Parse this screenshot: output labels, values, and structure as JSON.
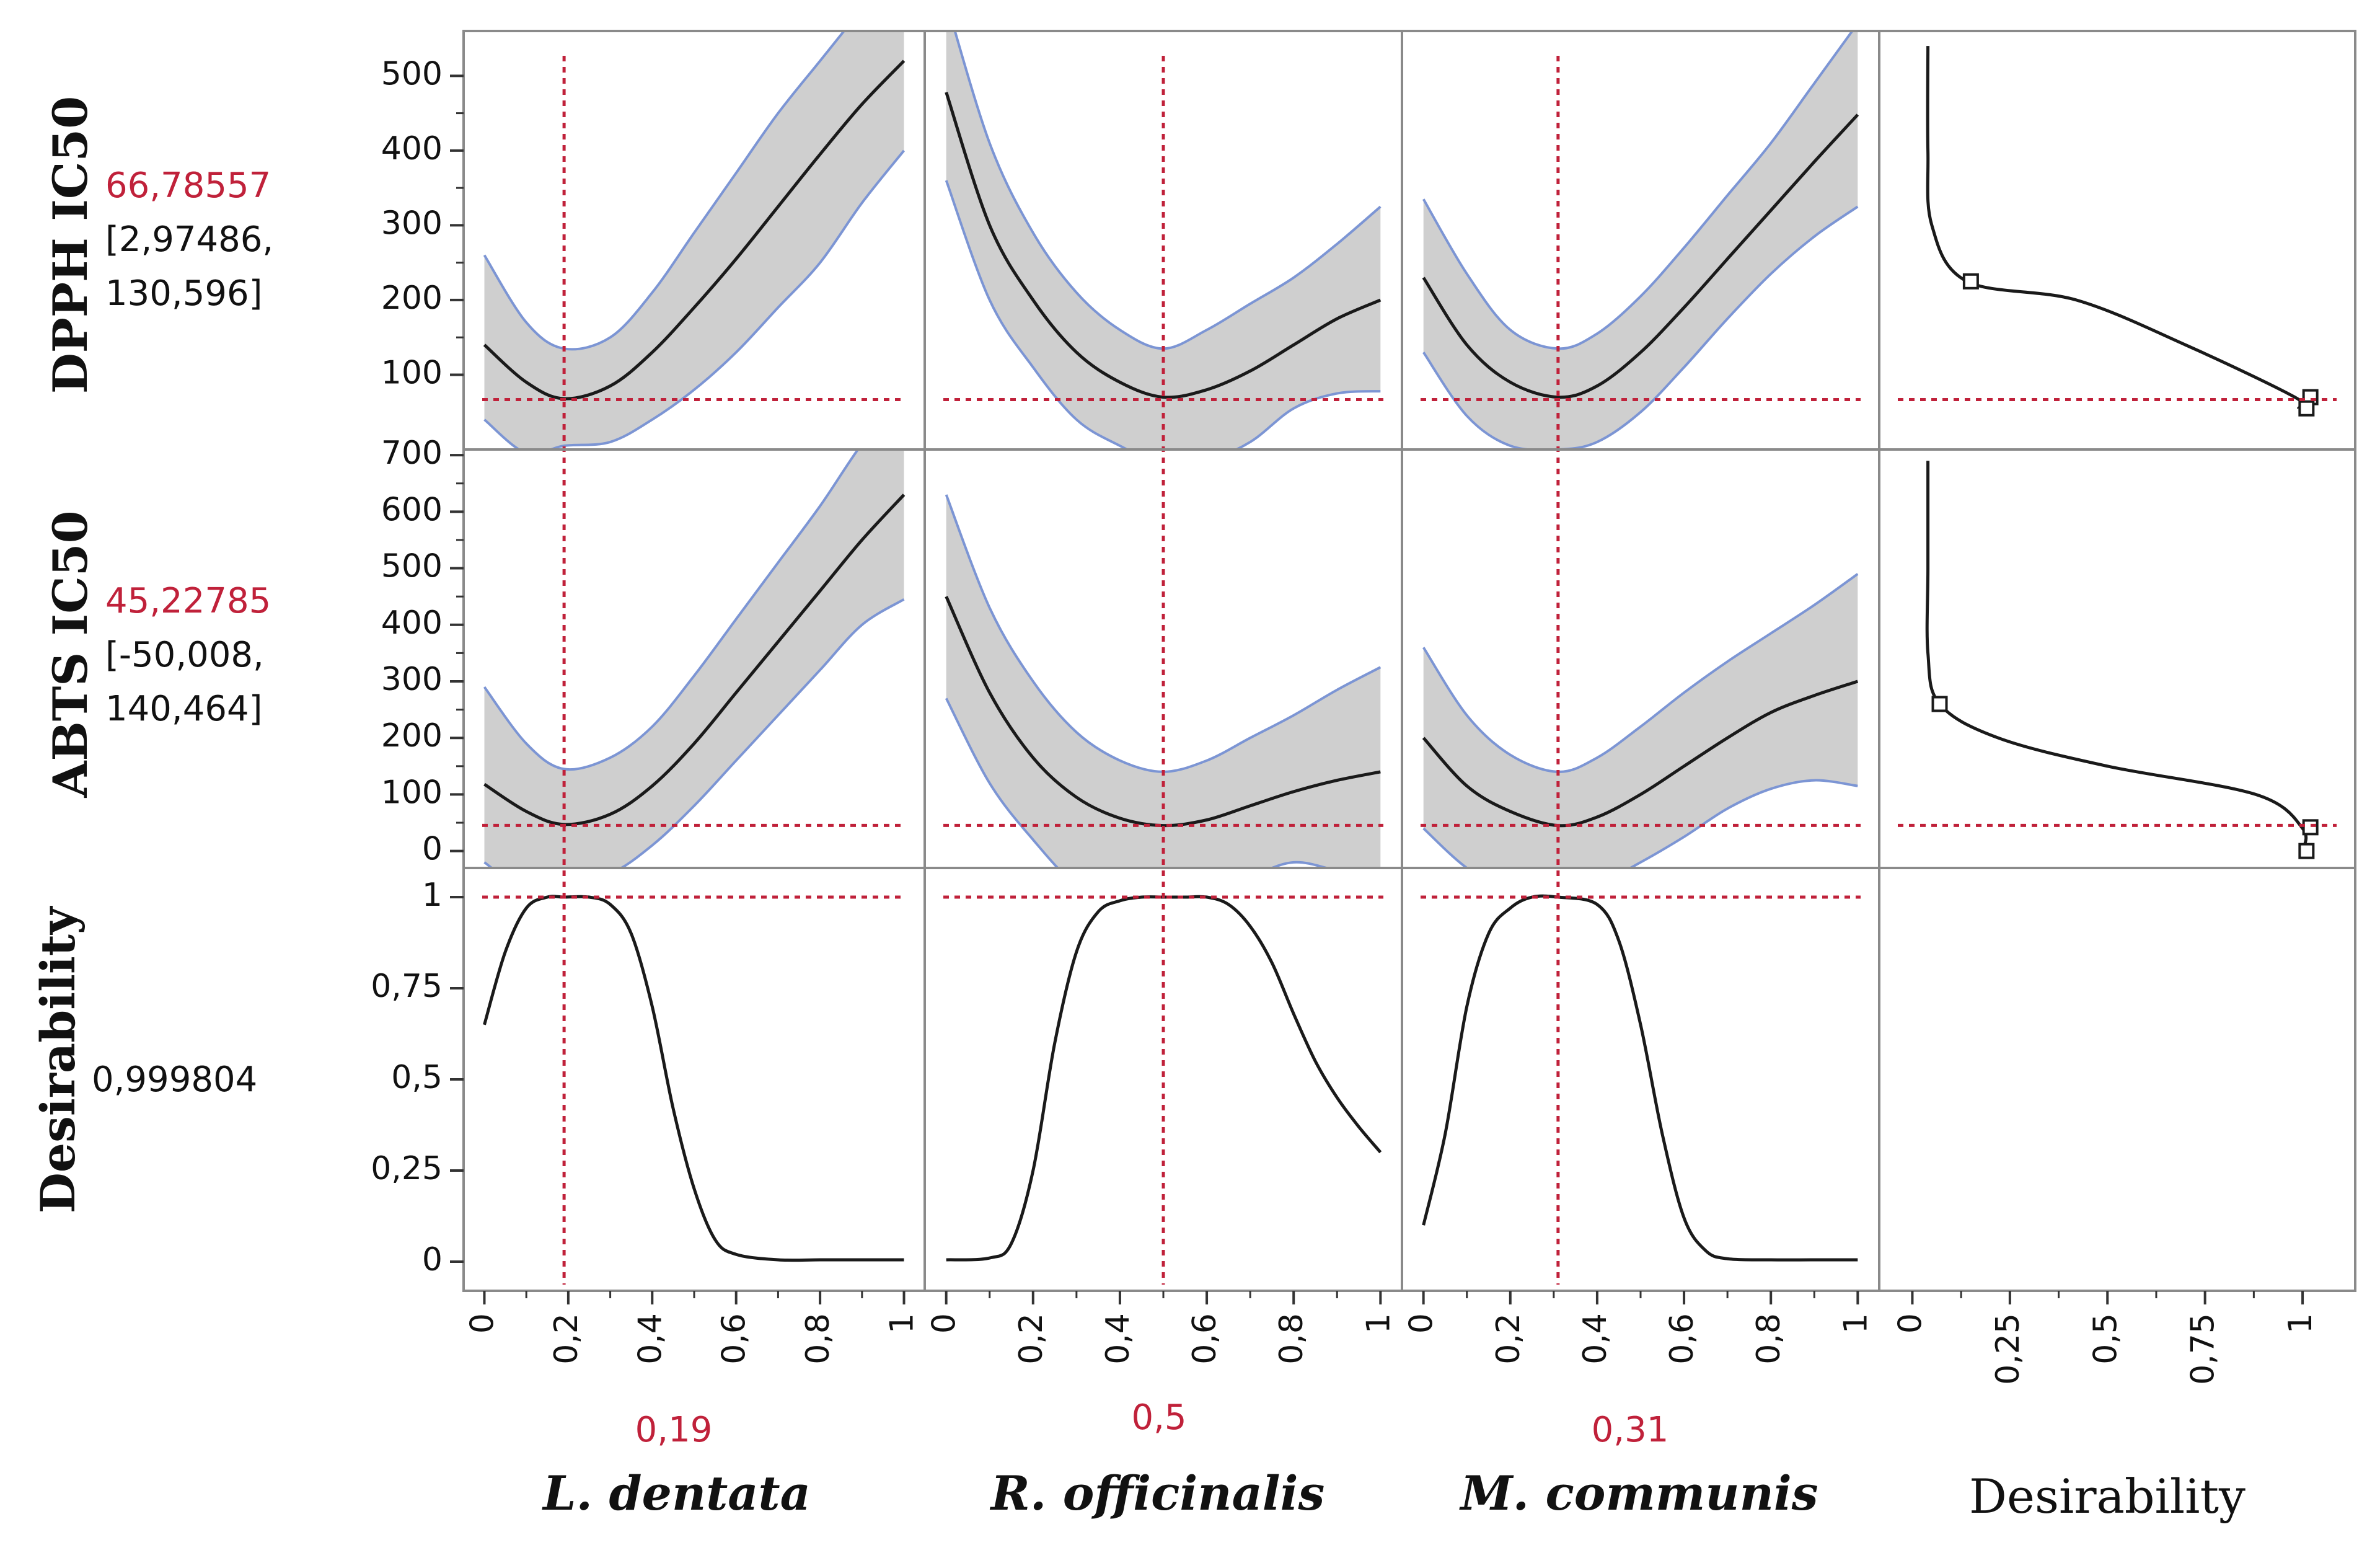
{
  "chart_data": {
    "type": "line",
    "kind": "prediction-profiler",
    "colors": {
      "curve": "#1a1a1a",
      "band_fill": "#cfcfcf",
      "band_edge": "#7c95d4",
      "reference": "#c0213a",
      "frame": "#8a8a8a"
    },
    "factors": [
      {
        "name": "L. dentata",
        "current": "0,19",
        "x_value": 0.19,
        "xlim": [
          0,
          1
        ],
        "ticks": [
          "0",
          "0,2",
          "0,4",
          "0,6",
          "0,8",
          "1"
        ]
      },
      {
        "name": "R. officinalis",
        "current": "0,5",
        "x_value": 0.5,
        "xlim": [
          0,
          1
        ],
        "ticks": [
          "0",
          "0,2",
          "0,4",
          "0,6",
          "0,8",
          "1"
        ]
      },
      {
        "name": "M. communis",
        "current": "0,31",
        "x_value": 0.31,
        "xlim": [
          0,
          1
        ],
        "ticks": [
          "0",
          "0,2",
          "0,4",
          "0,6",
          "0,8",
          "1"
        ]
      }
    ],
    "responses": [
      {
        "name": "DPPH IC50",
        "value": "66,78557",
        "ci_low": "[2,97486,",
        "ci_high": "130,596]",
        "ylim": [
          0,
          560
        ],
        "ticks": [
          "100",
          "200",
          "300",
          "400",
          "500"
        ],
        "tick_values": [
          100,
          200,
          300,
          400,
          500
        ],
        "current_y": 66.79,
        "curves": [
          {
            "x": [
              0,
              0.1,
              0.19,
              0.3,
              0.4,
              0.5,
              0.6,
              0.7,
              0.8,
              0.9,
              1.0
            ],
            "y": [
              140,
              90,
              68,
              85,
              130,
              190,
              255,
              325,
              395,
              462,
              520
            ],
            "lo": [
              40,
              -5,
              5,
              10,
              40,
              80,
              130,
              190,
              250,
              330,
              400
            ],
            "hi": [
              260,
              170,
              135,
              150,
              210,
              290,
              370,
              450,
              520,
              590,
              660
            ]
          },
          {
            "x": [
              0,
              0.1,
              0.2,
              0.3,
              0.4,
              0.5,
              0.6,
              0.7,
              0.8,
              0.9,
              1.0
            ],
            "y": [
              478,
              300,
              200,
              130,
              90,
              70,
              80,
              105,
              140,
              175,
              200
            ],
            "lo": [
              360,
              200,
              110,
              40,
              5,
              -20,
              -15,
              10,
              55,
              75,
              78
            ],
            "hi": [
              600,
              410,
              290,
              210,
              160,
              135,
              160,
              195,
              230,
              275,
              325
            ]
          },
          {
            "x": [
              0,
              0.1,
              0.2,
              0.31,
              0.4,
              0.5,
              0.6,
              0.7,
              0.8,
              0.9,
              1.0
            ],
            "y": [
              230,
              140,
              90,
              70,
              85,
              130,
              190,
              255,
              320,
              385,
              448
            ],
            "lo": [
              130,
              45,
              5,
              0,
              10,
              50,
              110,
              175,
              235,
              285,
              325
            ],
            "hi": [
              335,
              235,
              160,
              135,
              155,
              205,
              270,
              340,
              410,
              490,
              570
            ]
          }
        ],
        "desirability": {
          "goal": "minimize",
          "y": [
            55,
            70,
            140,
            200,
            225,
            300,
            400,
            540
          ],
          "d": [
            0.99,
            0.98,
            0.7,
            0.42,
            0.14,
            0.05,
            0.04,
            0.04
          ],
          "markers": [
            {
              "y": 225,
              "d": 0.15
            },
            {
              "y": 70,
              "d": 1.02
            },
            {
              "y": 55,
              "d": 1.01
            }
          ]
        }
      },
      {
        "name": "ABTS IC50",
        "value": "45,22785",
        "ci_low": "[-50,008,",
        "ci_high": "140,464]",
        "ylim": [
          -30,
          710
        ],
        "ticks": [
          "0",
          "100",
          "200",
          "300",
          "400",
          "500",
          "600",
          "700"
        ],
        "tick_values": [
          0,
          100,
          200,
          300,
          400,
          500,
          600,
          700
        ],
        "current_y": 45.23,
        "curves": [
          {
            "x": [
              0,
              0.1,
              0.19,
              0.3,
              0.4,
              0.5,
              0.6,
              0.7,
              0.8,
              0.9,
              1.0
            ],
            "y": [
              118,
              70,
              47,
              65,
              115,
              190,
              280,
              370,
              460,
              550,
              630
            ],
            "lo": [
              -20,
              -70,
              -55,
              -40,
              10,
              80,
              160,
              240,
              320,
              400,
              445
            ],
            "hi": [
              290,
              190,
              145,
              165,
              220,
              310,
              410,
              510,
              610,
              720,
              810
            ]
          },
          {
            "x": [
              0,
              0.1,
              0.2,
              0.3,
              0.4,
              0.5,
              0.6,
              0.7,
              0.8,
              0.9,
              1.0
            ],
            "y": [
              450,
              280,
              165,
              95,
              58,
              45,
              55,
              80,
              105,
              125,
              140
            ],
            "lo": [
              270,
              120,
              20,
              -60,
              -90,
              -90,
              -70,
              -45,
              -20,
              -35,
              -55
            ],
            "hi": [
              630,
              430,
              300,
              210,
              160,
              140,
              160,
              200,
              240,
              285,
              325
            ]
          },
          {
            "x": [
              0,
              0.1,
              0.2,
              0.31,
              0.4,
              0.5,
              0.6,
              0.7,
              0.8,
              0.9,
              1.0
            ],
            "y": [
              200,
              115,
              70,
              45,
              60,
              100,
              150,
              200,
              245,
              275,
              300
            ],
            "lo": [
              40,
              -30,
              -70,
              -80,
              -60,
              -20,
              25,
              75,
              110,
              125,
              115
            ],
            "hi": [
              360,
              240,
              170,
              140,
              165,
              220,
              280,
              335,
              385,
              435,
              490
            ]
          }
        ],
        "desirability": {
          "goal": "minimize",
          "y": [
            0,
            40,
            100,
            150,
            200,
            260,
            350,
            500,
            690
          ],
          "d": [
            1.0,
            1.0,
            0.88,
            0.5,
            0.22,
            0.07,
            0.04,
            0.04,
            0.04
          ],
          "markers": [
            {
              "y": 260,
              "d": 0.07
            },
            {
              "y": 42,
              "d": 1.02
            },
            {
              "y": 0,
              "d": 1.01
            }
          ]
        }
      }
    ],
    "overall_desirability": {
      "name": "Desirability",
      "value": "0,999804",
      "ylim": [
        -0.08,
        1.08
      ],
      "ticks": [
        "0",
        "0,25",
        "0,5",
        "0,75",
        "1"
      ],
      "tick_values": [
        0,
        0.25,
        0.5,
        0.75,
        1
      ],
      "current_y": 1.0,
      "curves": [
        {
          "x": [
            0,
            0.05,
            0.1,
            0.15,
            0.19,
            0.25,
            0.3,
            0.35,
            0.4,
            0.45,
            0.5,
            0.55,
            0.6,
            0.7,
            0.8,
            0.9,
            1.0
          ],
          "y": [
            0.65,
            0.85,
            0.97,
            1.0,
            1.0,
            1.0,
            0.98,
            0.9,
            0.7,
            0.42,
            0.2,
            0.06,
            0.02,
            0.005,
            0.005,
            0.005,
            0.005
          ]
        },
        {
          "x": [
            0,
            0.1,
            0.15,
            0.2,
            0.25,
            0.3,
            0.35,
            0.4,
            0.45,
            0.5,
            0.55,
            0.6,
            0.65,
            0.7,
            0.75,
            0.8,
            0.85,
            0.9,
            0.95,
            1.0
          ],
          "y": [
            0.005,
            0.01,
            0.05,
            0.25,
            0.6,
            0.85,
            0.96,
            0.99,
            1.0,
            1.0,
            1.0,
            1.0,
            0.98,
            0.92,
            0.82,
            0.68,
            0.55,
            0.45,
            0.37,
            0.3
          ]
        },
        {
          "x": [
            0,
            0.05,
            0.1,
            0.15,
            0.2,
            0.25,
            0.31,
            0.4,
            0.45,
            0.5,
            0.55,
            0.6,
            0.65,
            0.7,
            0.8,
            0.9,
            1.0
          ],
          "y": [
            0.1,
            0.35,
            0.7,
            0.9,
            0.97,
            1.0,
            1.0,
            0.98,
            0.88,
            0.65,
            0.35,
            0.12,
            0.03,
            0.008,
            0.005,
            0.005,
            0.005
          ]
        }
      ]
    },
    "desirability_axis": {
      "name": "Desirability",
      "ticks": [
        "0",
        "0,25",
        "0,5",
        "0,75",
        "1"
      ],
      "tick_values": [
        0,
        0.25,
        0.5,
        0.75,
        1
      ],
      "xlim": [
        -0.03,
        1.08
      ]
    }
  }
}
